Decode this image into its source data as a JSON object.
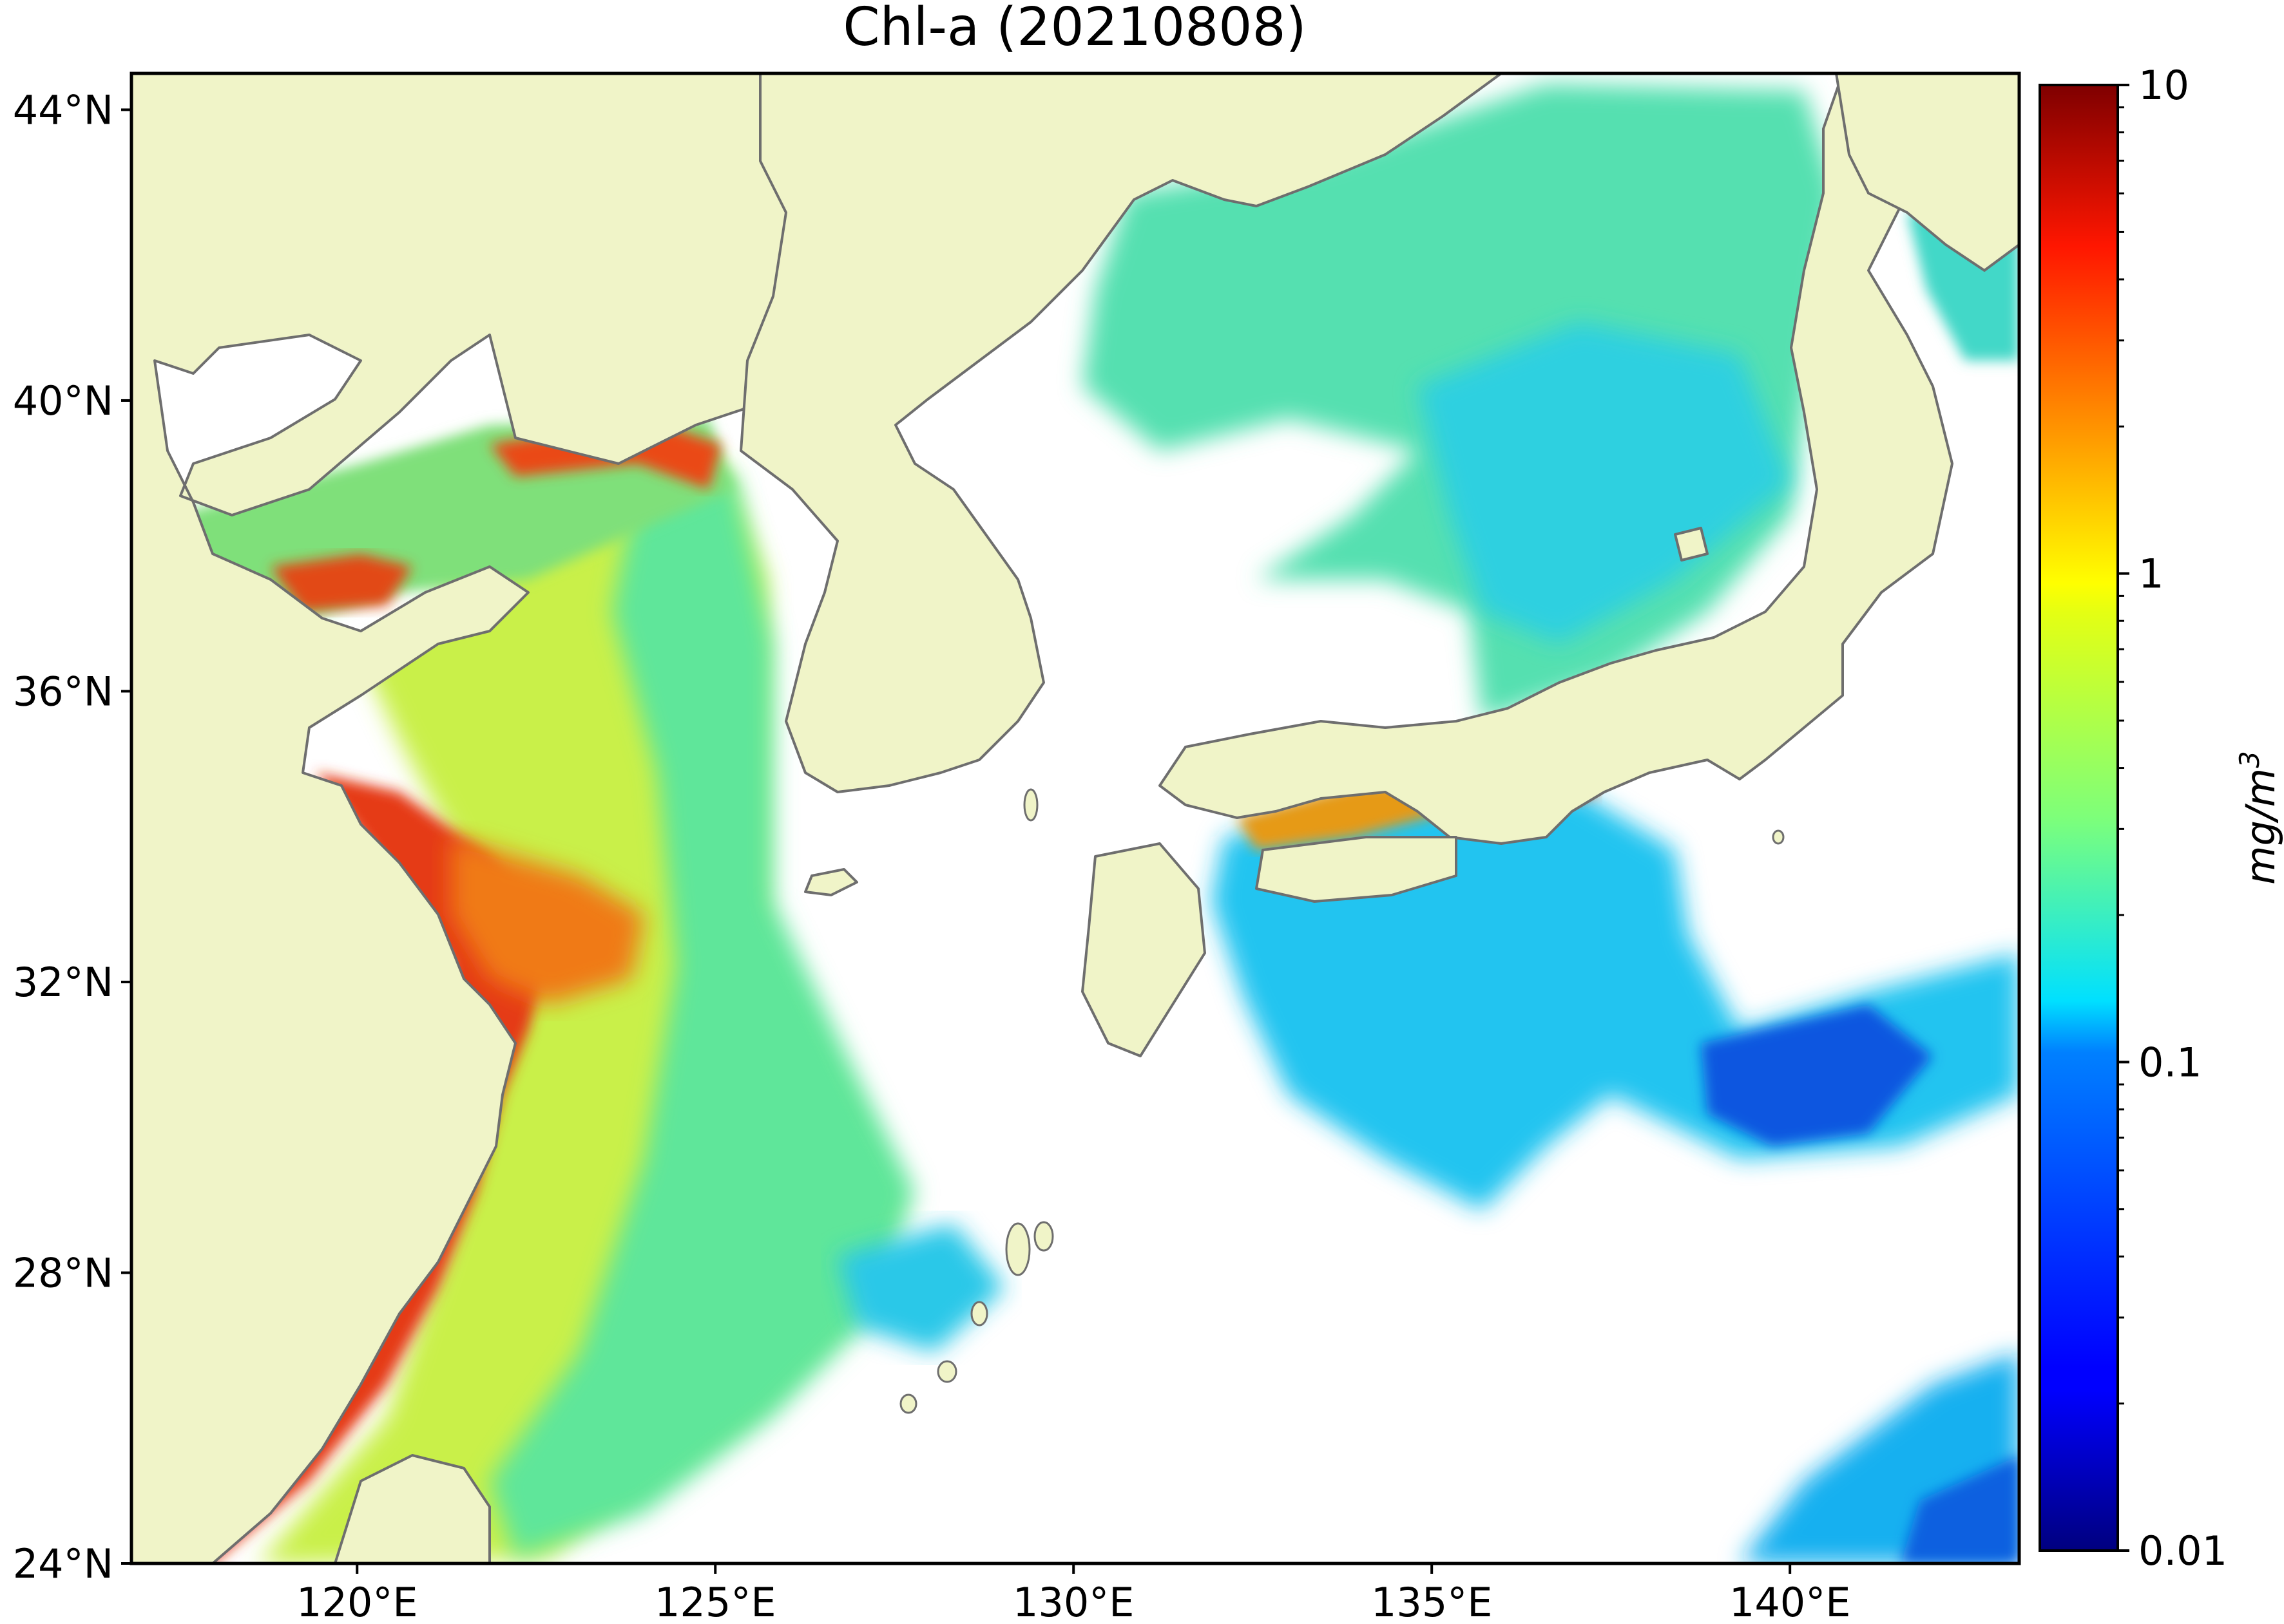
{
  "chart_data": {
    "type": "heatmap",
    "title": "Chl-a (20210808)",
    "map": {
      "lon_range": [
        116.85,
        143.2
      ],
      "lat_range": [
        24,
        44.5
      ],
      "land_color": "#f0f4c8",
      "coastline_color": "#6e6e6e",
      "missing_color": "#ffffff"
    },
    "x_ticks": [
      {
        "value": 120,
        "label": "120°E"
      },
      {
        "value": 125,
        "label": "125°E"
      },
      {
        "value": 130,
        "label": "130°E"
      },
      {
        "value": 135,
        "label": "135°E"
      },
      {
        "value": 140,
        "label": "140°E"
      }
    ],
    "y_ticks": [
      {
        "value": 24,
        "label": "24°N"
      },
      {
        "value": 28,
        "label": "28°N"
      },
      {
        "value": 32,
        "label": "32°N"
      },
      {
        "value": 36,
        "label": "36°N"
      },
      {
        "value": 40,
        "label": "40°N"
      },
      {
        "value": 44,
        "label": "44°N"
      }
    ],
    "colorbar": {
      "scale": "log",
      "range": [
        0.01,
        10
      ],
      "colormap": "jet",
      "unit_label": "mg/m",
      "unit_superscript": "3",
      "ticks": [
        {
          "value": 10,
          "label": "10"
        },
        {
          "value": 1,
          "label": "1"
        },
        {
          "value": 0.1,
          "label": "0.1"
        },
        {
          "value": 0.01,
          "label": "0.01"
        }
      ]
    }
  }
}
